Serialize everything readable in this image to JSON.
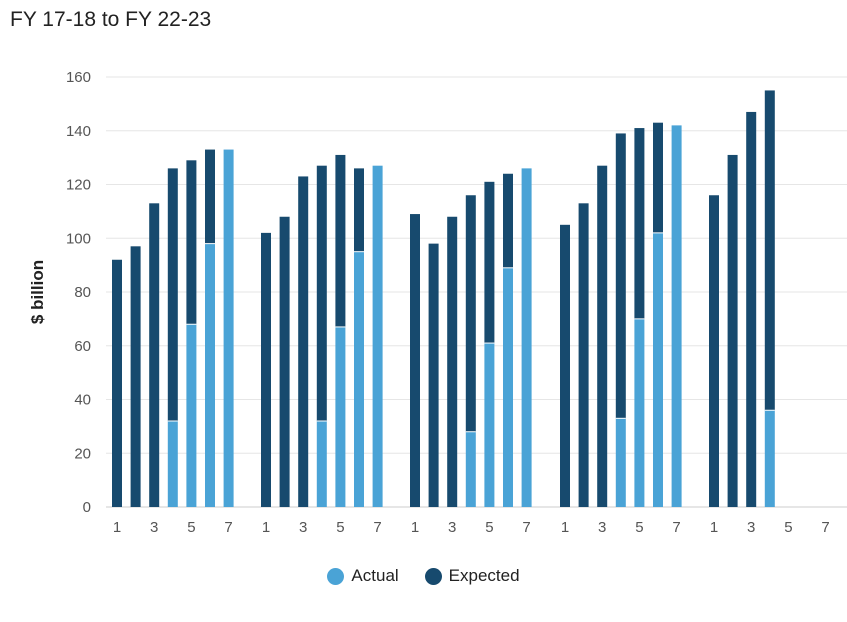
{
  "title": "FY 17-18 to FY 22-23",
  "legend": {
    "actual_label": "Actual",
    "expected_label": "Expected"
  },
  "colors": {
    "actual": "#4aa3d6",
    "expected": "#174a6e"
  },
  "chart_data": {
    "type": "bar",
    "title": "FY 17-18 to FY 22-23",
    "xlabel": "",
    "ylabel": "$ billion",
    "ylim": [
      0,
      160
    ],
    "yticks": [
      0,
      20,
      40,
      60,
      80,
      100,
      120,
      140,
      160
    ],
    "xtick_labels": [
      "1",
      "3",
      "5",
      "7"
    ],
    "stacked": true,
    "grid": true,
    "legend_position": "bottom",
    "groups": [
      {
        "categories": [
          "1",
          "2",
          "3",
          "4",
          "5",
          "6",
          "7"
        ],
        "actual": [
          0,
          0,
          0,
          32,
          68,
          98,
          133
        ],
        "expected": [
          92,
          97,
          113,
          94,
          61,
          35,
          0
        ]
      },
      {
        "categories": [
          "1",
          "2",
          "3",
          "4",
          "5",
          "6",
          "7"
        ],
        "actual": [
          0,
          0,
          0,
          32,
          67,
          95,
          127
        ],
        "expected": [
          102,
          108,
          123,
          95,
          64,
          31,
          0
        ]
      },
      {
        "categories": [
          "1",
          "2",
          "3",
          "4",
          "5",
          "6",
          "7"
        ],
        "actual": [
          0,
          0,
          0,
          28,
          61,
          89,
          126
        ],
        "expected": [
          109,
          98,
          108,
          88,
          60,
          35,
          0
        ]
      },
      {
        "categories": [
          "1",
          "2",
          "3",
          "4",
          "5",
          "6",
          "7"
        ],
        "actual": [
          0,
          0,
          0,
          33,
          70,
          102,
          142
        ],
        "expected": [
          105,
          113,
          127,
          106,
          71,
          41,
          0
        ]
      },
      {
        "categories": [
          "1",
          "2",
          "3",
          "4",
          "5",
          "6",
          "7"
        ],
        "actual": [
          0,
          0,
          0,
          36,
          0,
          0,
          0
        ],
        "expected": [
          116,
          131,
          147,
          119,
          0,
          0,
          0
        ]
      }
    ]
  }
}
